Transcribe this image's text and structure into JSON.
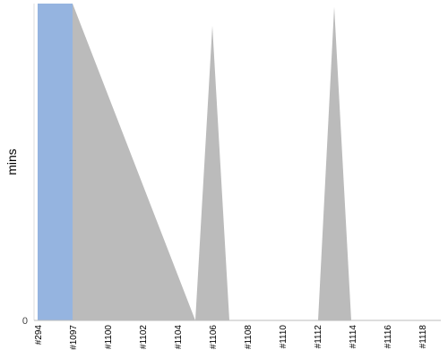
{
  "chart_data": {
    "type": "area",
    "ylabel": "mins",
    "y_ticks": [
      "0"
    ],
    "ylim": [
      0,
      1
    ],
    "categories": [
      "#294",
      "#1097",
      "#1100",
      "#1102",
      "#1104",
      "#1106",
      "#1108",
      "#1110",
      "#1112",
      "#1114",
      "#1116",
      "#1118"
    ],
    "series": [
      {
        "color": "#bbbbbb",
        "points": [
          {
            "x": "#294",
            "y": 1.0
          },
          {
            "x": "#1097",
            "y": 1.0
          },
          {
            "x": "#1106 before",
            "y": 0.0
          },
          {
            "x": "#1106",
            "y": 0.93
          },
          {
            "x": "#1106 after",
            "y": 0.0
          },
          {
            "x": "#1113 before",
            "y": 0.0
          },
          {
            "x": "#1113",
            "y": 0.99
          },
          {
            "x": "#1113 after",
            "y": 0.0
          }
        ]
      },
      {
        "color": "#95b4e0",
        "points": [
          {
            "x": "#294",
            "y": 1.0
          },
          {
            "x": "#1097",
            "y": 1.0
          }
        ]
      }
    ],
    "grid": false
  }
}
